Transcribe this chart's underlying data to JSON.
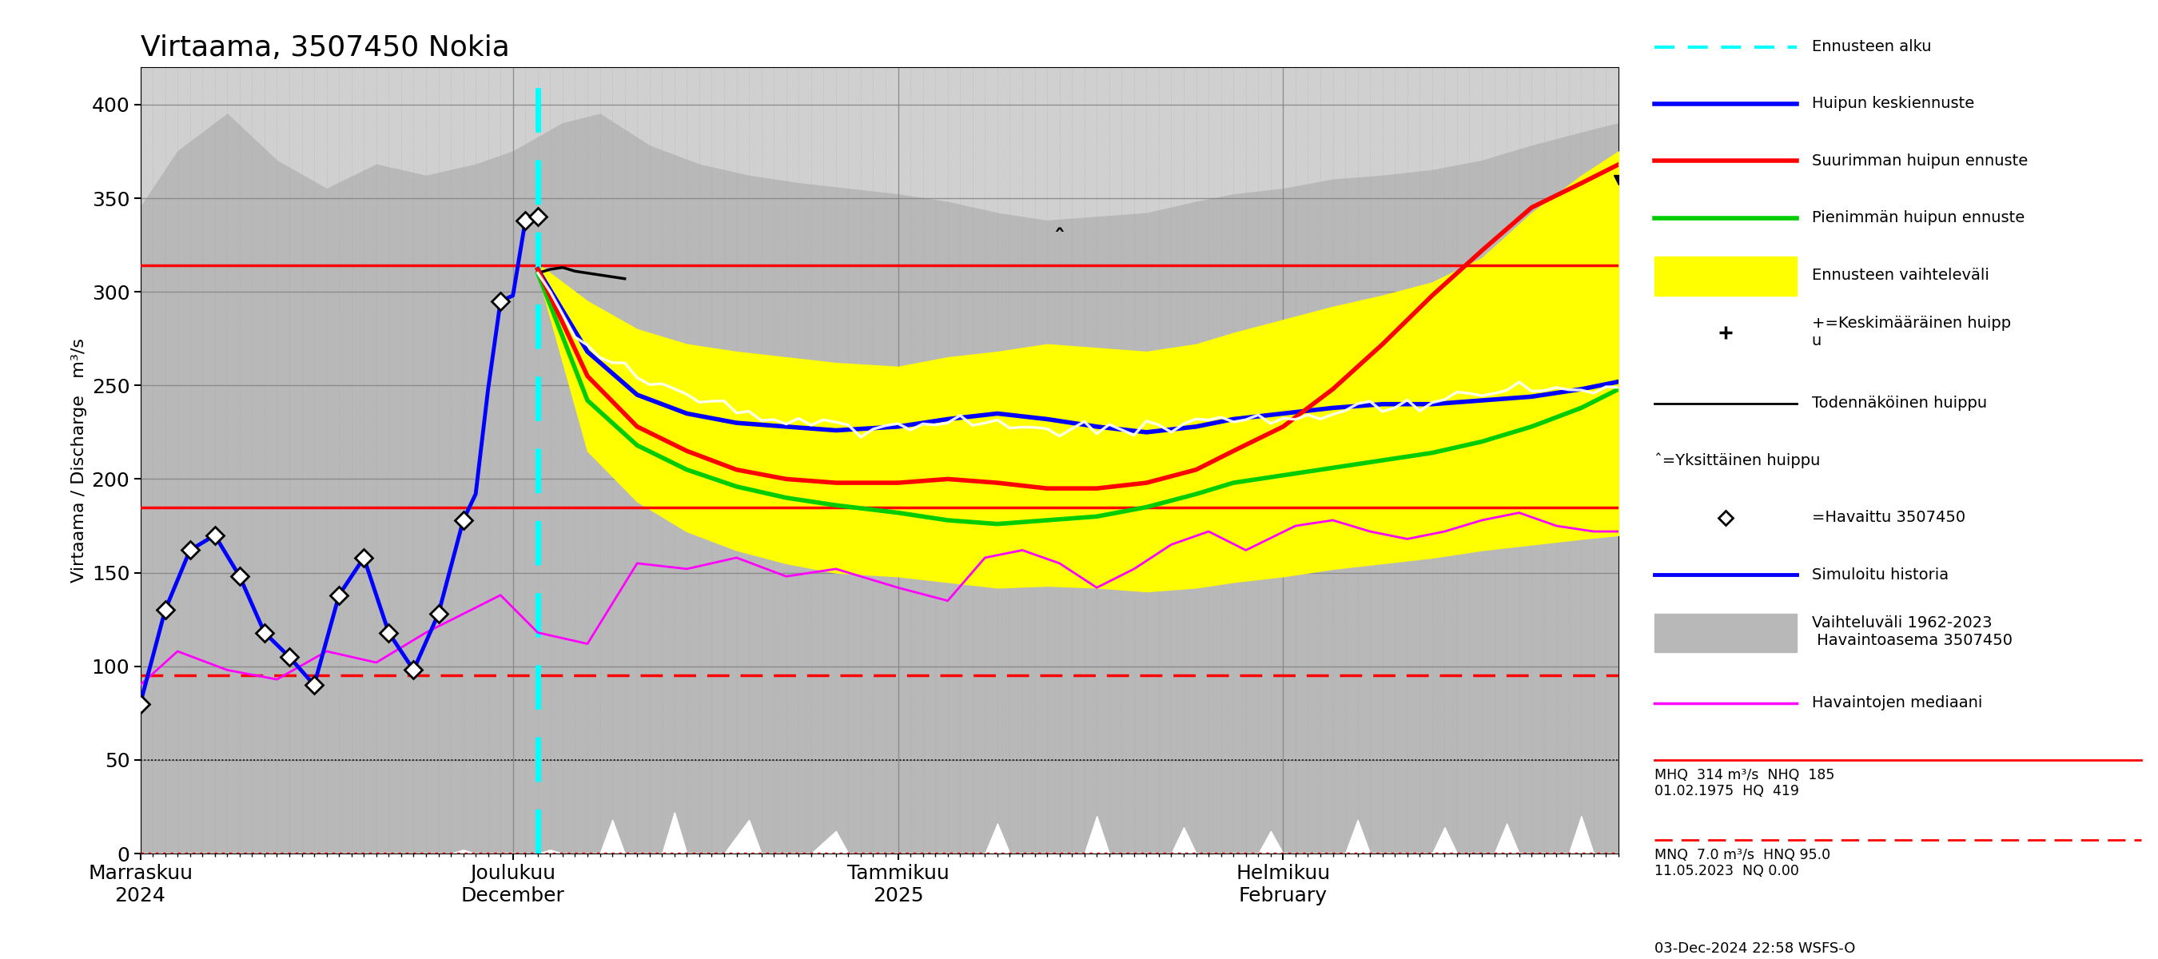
{
  "title": "Virtaama, 3507450 Nokia",
  "ylabel": "Virtaama / Discharge   m³/s",
  "ylim": [
    0,
    420
  ],
  "yticks": [
    0,
    50,
    100,
    150,
    200,
    250,
    300,
    350,
    400
  ],
  "xstart": "2024-11-01",
  "xend": "2025-02-28",
  "forecast_start": "2024-12-03",
  "MHQ": 314,
  "NHQ": 185,
  "MNQ": 7.0,
  "HNQ": 95.0,
  "HQ": 419,
  "NQ": 0.0,
  "MHQ_date": "01.02.1975",
  "MNQ_date": "11.05.2023",
  "timestamp": "03-Dec-2024 22:58 WSFS-O",
  "hist_upper": {
    "2024-11-01": 345,
    "2024-11-04": 375,
    "2024-11-08": 395,
    "2024-11-12": 370,
    "2024-11-16": 355,
    "2024-11-20": 368,
    "2024-11-24": 362,
    "2024-11-28": 368,
    "2024-12-01": 375,
    "2024-12-05": 390,
    "2024-12-08": 395,
    "2024-12-12": 378,
    "2024-12-16": 368,
    "2024-12-20": 362,
    "2024-12-24": 358,
    "2024-12-28": 355,
    "2025-01-01": 352,
    "2025-01-05": 348,
    "2025-01-09": 342,
    "2025-01-13": 338,
    "2025-01-17": 340,
    "2025-01-21": 342,
    "2025-01-25": 348,
    "2025-01-28": 352,
    "2025-02-01": 355,
    "2025-02-05": 360,
    "2025-02-09": 362,
    "2025-02-13": 365,
    "2025-02-17": 370,
    "2025-02-21": 378,
    "2025-02-25": 385,
    "2025-02-28": 390
  },
  "observed": {
    "2024-11-01": 80,
    "2024-11-03": 130,
    "2024-11-05": 162,
    "2024-11-07": 170,
    "2024-11-09": 148,
    "2024-11-11": 118,
    "2024-11-13": 105,
    "2024-11-15": 90,
    "2024-11-17": 138,
    "2024-11-19": 158,
    "2024-11-21": 118,
    "2024-11-23": 98,
    "2024-11-25": 128,
    "2024-11-27": 178,
    "2024-11-28": 192,
    "2024-11-29": 248,
    "2024-11-30": 295,
    "2024-12-01": 298,
    "2024-12-02": 338,
    "2024-12-03": 340
  },
  "obs_markers": {
    "2024-11-01": 80,
    "2024-11-03": 130,
    "2024-11-05": 162,
    "2024-11-07": 170,
    "2024-11-09": 148,
    "2024-11-11": 118,
    "2024-11-13": 105,
    "2024-11-15": 90,
    "2024-11-17": 138,
    "2024-11-19": 158,
    "2024-11-21": 118,
    "2024-11-23": 98,
    "2024-11-25": 128,
    "2024-11-27": 178,
    "2024-11-30": 295,
    "2024-12-02": 338,
    "2024-12-03": 340
  },
  "simulated": {
    "2024-11-01": 90,
    "2024-11-04": 108,
    "2024-11-08": 98,
    "2024-11-12": 93,
    "2024-11-16": 108,
    "2024-11-20": 102,
    "2024-11-24": 118,
    "2024-11-27": 128,
    "2024-11-30": 138,
    "2024-12-03": 118,
    "2024-12-07": 112,
    "2024-12-11": 155,
    "2024-12-15": 152,
    "2024-12-19": 158,
    "2024-12-23": 148,
    "2024-12-27": 152,
    "2025-01-01": 142,
    "2025-01-05": 135,
    "2025-01-08": 158,
    "2025-01-11": 162,
    "2025-01-14": 155,
    "2025-01-17": 142,
    "2025-01-20": 152,
    "2025-01-23": 165,
    "2025-01-26": 172,
    "2025-01-29": 162,
    "2025-02-02": 175,
    "2025-02-05": 178,
    "2025-02-08": 172,
    "2025-02-11": 168,
    "2025-02-14": 172,
    "2025-02-17": 178,
    "2025-02-20": 182,
    "2025-02-23": 175,
    "2025-02-26": 172,
    "2025-02-28": 172
  },
  "yellow_upper": {
    "2024-12-03": 315,
    "2024-12-07": 295,
    "2024-12-11": 280,
    "2024-12-15": 272,
    "2024-12-19": 268,
    "2024-12-23": 265,
    "2024-12-27": 262,
    "2025-01-01": 260,
    "2025-01-05": 265,
    "2025-01-09": 268,
    "2025-01-13": 272,
    "2025-01-17": 270,
    "2025-01-21": 268,
    "2025-01-25": 272,
    "2025-01-28": 278,
    "2025-02-01": 285,
    "2025-02-05": 292,
    "2025-02-09": 298,
    "2025-02-13": 305,
    "2025-02-17": 318,
    "2025-02-21": 342,
    "2025-02-25": 362,
    "2025-02-28": 375
  },
  "yellow_lower": {
    "2024-12-03": 310,
    "2024-12-07": 215,
    "2024-12-11": 188,
    "2024-12-15": 172,
    "2024-12-19": 162,
    "2024-12-23": 155,
    "2024-12-27": 150,
    "2025-01-01": 148,
    "2025-01-05": 145,
    "2025-01-09": 142,
    "2025-01-13": 143,
    "2025-01-17": 142,
    "2025-01-21": 140,
    "2025-01-25": 142,
    "2025-01-28": 145,
    "2025-02-01": 148,
    "2025-02-05": 152,
    "2025-02-09": 155,
    "2025-02-13": 158,
    "2025-02-17": 162,
    "2025-02-21": 165,
    "2025-02-25": 168,
    "2025-02-28": 170
  },
  "blue_fc": {
    "2024-12-03": 312,
    "2024-12-07": 268,
    "2024-12-11": 245,
    "2024-12-15": 235,
    "2024-12-19": 230,
    "2024-12-23": 228,
    "2024-12-27": 226,
    "2025-01-01": 228,
    "2025-01-05": 232,
    "2025-01-09": 235,
    "2025-01-13": 232,
    "2025-01-17": 228,
    "2025-01-21": 225,
    "2025-01-25": 228,
    "2025-01-28": 232,
    "2025-02-01": 235,
    "2025-02-05": 238,
    "2025-02-09": 240,
    "2025-02-13": 240,
    "2025-02-17": 242,
    "2025-02-21": 244,
    "2025-02-25": 248,
    "2025-02-28": 252
  },
  "red_fc": {
    "2024-12-03": 312,
    "2024-12-07": 255,
    "2024-12-11": 228,
    "2024-12-15": 215,
    "2024-12-19": 205,
    "2024-12-23": 200,
    "2024-12-27": 198,
    "2025-01-01": 198,
    "2025-01-05": 200,
    "2025-01-09": 198,
    "2025-01-13": 195,
    "2025-01-17": 195,
    "2025-01-21": 198,
    "2025-01-25": 205,
    "2025-01-28": 215,
    "2025-02-01": 228,
    "2025-02-05": 248,
    "2025-02-09": 272,
    "2025-02-13": 298,
    "2025-02-17": 322,
    "2025-02-21": 345,
    "2025-02-25": 358,
    "2025-02-28": 368
  },
  "green_fc": {
    "2024-12-03": 310,
    "2024-12-07": 242,
    "2024-12-11": 218,
    "2024-12-15": 205,
    "2024-12-19": 196,
    "2024-12-23": 190,
    "2024-12-27": 186,
    "2025-01-01": 182,
    "2025-01-05": 178,
    "2025-01-09": 176,
    "2025-01-13": 178,
    "2025-01-17": 180,
    "2025-01-21": 185,
    "2025-01-25": 192,
    "2025-01-28": 198,
    "2025-02-01": 202,
    "2025-02-05": 206,
    "2025-02-09": 210,
    "2025-02-13": 214,
    "2025-02-17": 220,
    "2025-02-21": 228,
    "2025-02-25": 238,
    "2025-02-28": 248
  },
  "white_fc": {
    "2024-12-03": 310,
    "2024-12-06": 278,
    "2024-12-09": 262,
    "2024-12-12": 252,
    "2024-12-15": 245,
    "2024-12-18": 240,
    "2024-12-21": 236,
    "2024-12-24": 233,
    "2024-12-27": 230,
    "2024-12-30": 228,
    "2025-01-02": 230,
    "2025-01-05": 232,
    "2025-01-08": 230,
    "2025-01-11": 228,
    "2025-01-14": 226,
    "2025-01-17": 228,
    "2025-01-20": 225,
    "2025-01-23": 228,
    "2025-01-26": 232,
    "2025-01-29": 230,
    "2025-02-01": 232,
    "2025-02-04": 235,
    "2025-02-07": 238,
    "2025-02-10": 240,
    "2025-02-13": 242,
    "2025-02-16": 244,
    "2025-02-19": 248,
    "2025-02-22": 248,
    "2025-02-25": 248,
    "2025-02-28": 250
  },
  "white_spikes": {
    "2024-11-01": 0,
    "2024-11-26": 0,
    "2024-11-27": 2,
    "2024-11-28": 0,
    "2024-12-03": 0,
    "2024-12-04": 2,
    "2024-12-05": 0,
    "2024-12-08": 0,
    "2024-12-09": 18,
    "2024-12-10": 0,
    "2024-12-11": 0,
    "2024-12-13": 0,
    "2024-12-14": 22,
    "2024-12-15": 0,
    "2024-12-18": 0,
    "2024-12-20": 18,
    "2024-12-21": 0,
    "2024-12-25": 0,
    "2024-12-27": 12,
    "2024-12-28": 0,
    "2025-01-01": 0,
    "2025-01-08": 0,
    "2025-01-09": 16,
    "2025-01-10": 0,
    "2025-01-16": 0,
    "2025-01-17": 20,
    "2025-01-18": 0,
    "2025-01-23": 0,
    "2025-01-24": 14,
    "2025-01-25": 0,
    "2025-01-30": 0,
    "2025-01-31": 12,
    "2025-02-01": 0,
    "2025-02-06": 0,
    "2025-02-07": 18,
    "2025-02-08": 0,
    "2025-02-13": 0,
    "2025-02-14": 14,
    "2025-02-15": 0,
    "2025-02-18": 0,
    "2025-02-19": 16,
    "2025-02-20": 0,
    "2025-02-24": 0,
    "2025-02-25": 20,
    "2025-02-26": 0,
    "2025-02-28": 0
  },
  "obs_after_fc": {
    "2024-12-03": 310,
    "2024-12-04": 312,
    "2024-12-05": 313,
    "2024-12-06": 311,
    "2024-12-07": 310,
    "2024-12-08": 309,
    "2024-12-09": 308,
    "2024-12-10": 307
  },
  "single_peak_date": "2025-01-14",
  "single_peak_val": 322,
  "final_peak_val": 360
}
